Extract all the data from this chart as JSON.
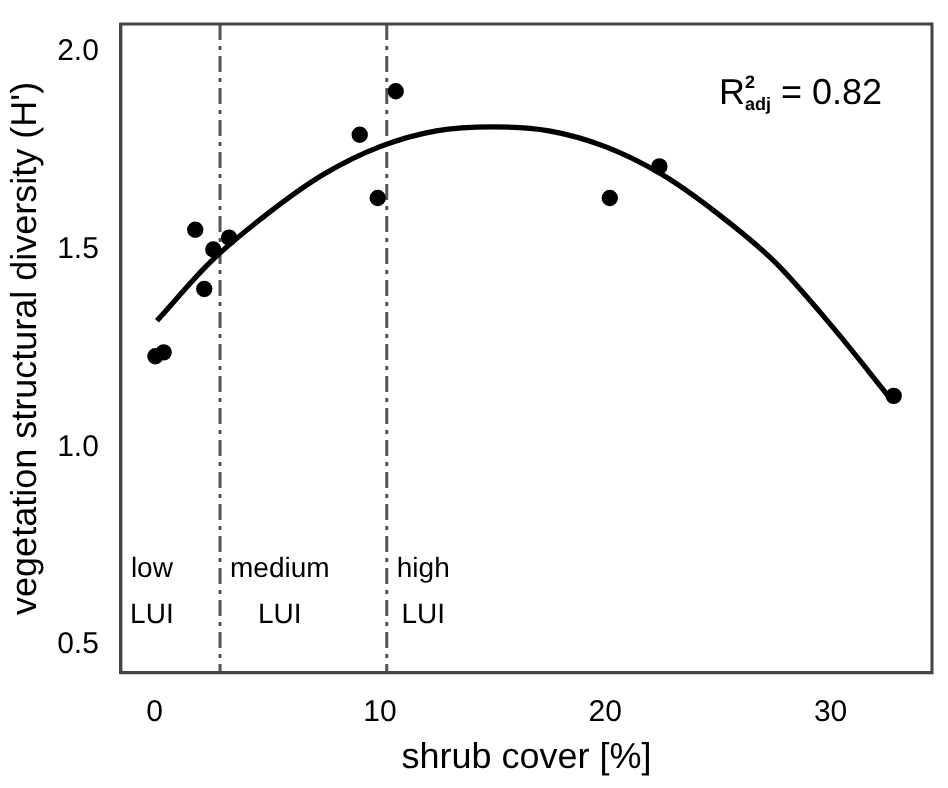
{
  "chart_data": {
    "type": "scatter",
    "xlabel": "shrub cover [%]",
    "ylabel": "vegetation structural diversity (H')",
    "xlim": [
      -1.5,
      34.5
    ],
    "xticks": [
      0,
      10,
      20,
      30
    ],
    "ylim": [
      0.43,
      2.07
    ],
    "yticks": [
      {
        "value": 0.5,
        "label": "0.5"
      },
      {
        "value": 1,
        "label": "1.0"
      },
      {
        "value": 1.5,
        "label": "1.5"
      },
      {
        "value": 2,
        "label": "2.0"
      }
    ],
    "grid": false,
    "legend": false,
    "marker": "circle",
    "series": [
      {
        "color": "#000000",
        "x": [
          0.03,
          0.4,
          1.8,
          2.2,
          2.6,
          3.3,
          9.1,
          9.9,
          10.7,
          20.2,
          22.4,
          32.8
        ],
        "values": [
          1.23,
          1.24,
          1.55,
          1.4,
          1.5,
          1.53,
          1.79,
          1.63,
          1.9,
          1.63,
          1.71,
          1.13
        ]
      },
      {
        "type": "line",
        "color": "#000000",
        "marker": "none",
        "line_style": "solid",
        "x": [
          0.1,
          2.5,
          5,
          7.5,
          10,
          12.5,
          15,
          17.5,
          20,
          22.5,
          25,
          27.5,
          30,
          32.7
        ],
        "values": [
          1.32,
          1.47,
          1.59,
          1.69,
          1.76,
          1.8,
          1.81,
          1.8,
          1.76,
          1.69,
          1.59,
          1.47,
          1.31,
          1.12
        ]
      }
    ],
    "ref_lines": [
      {
        "axis": "x",
        "value": 2.9,
        "color": "#555555",
        "line_style": "dashdot"
      },
      {
        "axis": "x",
        "value": 10.3,
        "color": "#555555",
        "line_style": "dashdot"
      }
    ],
    "annotations": [
      "R$^{2}$$_{adj}$ = 0.82",
      "low\nLUI",
      "medium\nLUI",
      "high\nLUI"
    ]
  }
}
